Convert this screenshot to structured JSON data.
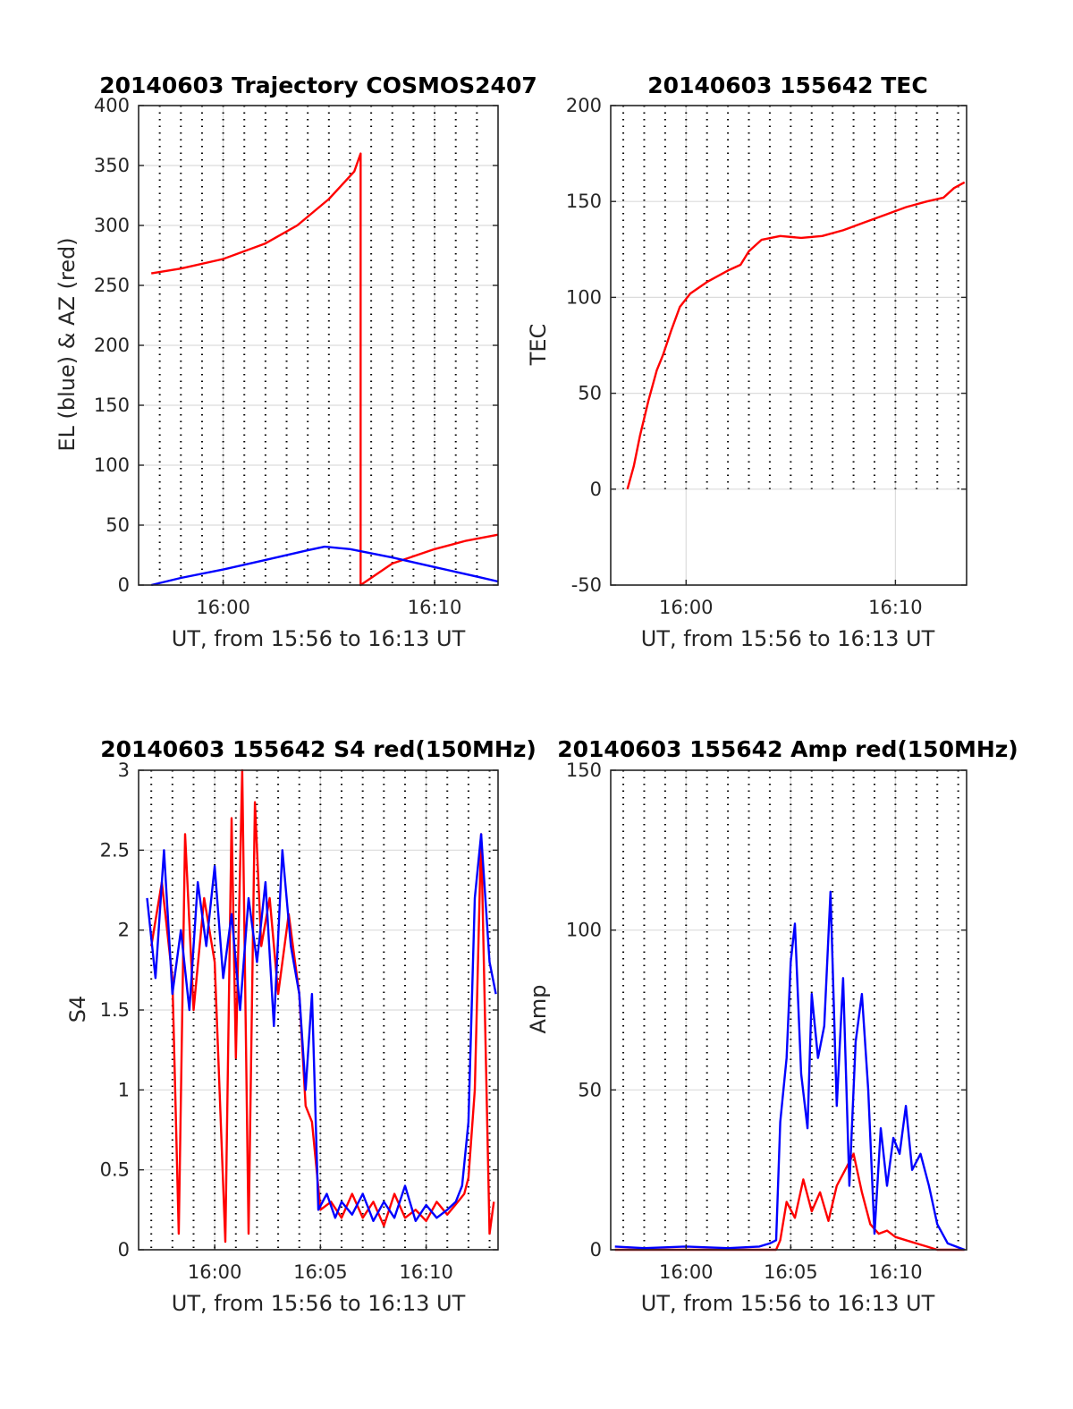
{
  "figure": {
    "date": "20140603",
    "colors": {
      "red": "#ff0000",
      "blue": "#0000ff",
      "grid": "#dcdcdc",
      "axis": "#262626"
    }
  },
  "chart_data": [
    {
      "id": "trajectory",
      "type": "line",
      "title": "20140603 Trajectory COSMOS2407",
      "xlabel": "UT, from 15:56 to 16:13 UT",
      "ylabel": "EL (blue) & AZ (red)",
      "xlim_minutes": [
        956,
        973
      ],
      "ylim": [
        0,
        400
      ],
      "yticks": [
        0,
        50,
        100,
        150,
        200,
        250,
        300,
        350,
        400
      ],
      "yticklabels": [
        "0",
        "50",
        "100",
        "150",
        "200",
        "250",
        "300",
        "350",
        "400"
      ],
      "xticks_minutes": [
        960,
        970
      ],
      "xticklabels": [
        "16:00",
        "16:10"
      ],
      "vlines_minutes": [
        957,
        958,
        959,
        960,
        961,
        962,
        963,
        964,
        965,
        966,
        967,
        968,
        969,
        970,
        971,
        972
      ],
      "grid": true,
      "series": [
        {
          "color": "#ff0000",
          "x": [
            956.6,
            958,
            960,
            962,
            963.5,
            965,
            966.2,
            966.5,
            966.5,
            966.5,
            968,
            970,
            971.5,
            973
          ],
          "y": [
            260,
            264,
            272,
            285,
            300,
            322,
            345,
            360,
            360,
            0,
            18,
            30,
            37,
            42
          ]
        },
        {
          "color": "#0000ff",
          "x": [
            956.6,
            958,
            960,
            962,
            964,
            964.8,
            966,
            968,
            970,
            972,
            973
          ],
          "y": [
            0,
            6,
            13,
            21,
            29,
            32,
            30,
            23,
            15,
            7,
            3
          ]
        }
      ]
    },
    {
      "id": "tec",
      "type": "line",
      "title": "20140603 155642 TEC",
      "xlabel": "UT, from 15:56 to 16:13 UT",
      "ylabel": "TEC",
      "xlim_minutes": [
        956.4,
        973.4
      ],
      "ylim": [
        -50,
        200
      ],
      "yticks": [
        -50,
        0,
        50,
        100,
        150,
        200
      ],
      "yticklabels": [
        "-50",
        "0",
        "50",
        "100",
        "150",
        "200"
      ],
      "xticks_minutes": [
        960,
        970
      ],
      "xticklabels": [
        "16:00",
        "16:10"
      ],
      "vlines_minutes": [
        957,
        958,
        959,
        960,
        961,
        962,
        963,
        964,
        965,
        966,
        967,
        968,
        969,
        970,
        971,
        972,
        973
      ],
      "vlines_ymin": 0,
      "grid": true,
      "series": [
        {
          "color": "#ff0000",
          "x": [
            957.2,
            957.5,
            957.8,
            958.2,
            958.6,
            958.9,
            959.3,
            959.7,
            960.2,
            961,
            962,
            962.6,
            963,
            963.6,
            964.5,
            965.5,
            966.5,
            967.5,
            968.5,
            969.5,
            970.5,
            971.5,
            972.3,
            972.8,
            973.3
          ],
          "y": [
            0,
            12,
            28,
            46,
            62,
            70,
            83,
            95,
            102,
            108,
            114,
            117,
            124,
            130,
            132,
            131,
            132,
            135,
            139,
            143,
            147,
            150,
            152,
            157,
            160
          ]
        }
      ]
    },
    {
      "id": "s4",
      "type": "line",
      "title": "20140603 155642 S4 red(150MHz)",
      "xlabel": "UT, from 15:56 to 16:13 UT",
      "ylabel": "S4",
      "xlim_minutes": [
        956.4,
        973.4
      ],
      "ylim": [
        0,
        3
      ],
      "yticks": [
        0,
        0.5,
        1,
        1.5,
        2,
        2.5,
        3
      ],
      "yticklabels": [
        "0",
        "0.5",
        "1",
        "1.5",
        "2",
        "2.5",
        "3"
      ],
      "xticks_minutes": [
        960,
        965,
        970
      ],
      "xticklabels": [
        "16:00",
        "16:05",
        "16:10"
      ],
      "vlines_minutes": [
        957,
        958,
        959,
        960,
        961,
        962,
        963,
        964,
        965,
        966,
        967,
        968,
        969,
        970,
        971,
        972,
        973
      ],
      "grid": true,
      "series": [
        {
          "color": "#ff0000",
          "x": [
            957,
            957.5,
            958,
            958.3,
            958.6,
            959,
            959.5,
            960,
            960.5,
            960.8,
            961,
            961.3,
            961.6,
            961.9,
            962.2,
            962.6,
            963,
            963.5,
            964,
            964.3,
            964.6,
            965,
            965.5,
            966,
            966.5,
            967,
            967.5,
            968,
            968.5,
            969,
            969.5,
            970,
            970.5,
            971,
            971.5,
            971.8,
            972,
            972.3,
            972.6,
            973,
            973.2
          ],
          "y": [
            1.9,
            2.3,
            1.7,
            0.1,
            2.6,
            1.5,
            2.2,
            1.8,
            0.05,
            2.7,
            1.2,
            3.0,
            0.1,
            2.8,
            1.9,
            2.2,
            1.6,
            2.1,
            1.6,
            0.9,
            0.8,
            0.25,
            0.3,
            0.2,
            0.35,
            0.2,
            0.3,
            0.15,
            0.35,
            0.2,
            0.25,
            0.18,
            0.3,
            0.22,
            0.3,
            0.35,
            0.45,
            1.0,
            2.6,
            0.1,
            0.3
          ]
        },
        {
          "color": "#0000ff",
          "x": [
            956.8,
            957.2,
            957.6,
            958,
            958.4,
            958.8,
            959.2,
            959.6,
            960,
            960.4,
            960.8,
            961.2,
            961.6,
            962,
            962.4,
            962.8,
            963.2,
            963.6,
            964,
            964.3,
            964.6,
            964.9,
            965.3,
            965.7,
            966,
            966.5,
            967,
            967.5,
            968,
            968.5,
            969,
            969.5,
            970,
            970.5,
            971,
            971.4,
            971.7,
            972,
            972.3,
            972.6,
            973,
            973.3
          ],
          "y": [
            2.2,
            1.7,
            2.5,
            1.6,
            2.0,
            1.5,
            2.3,
            1.9,
            2.4,
            1.7,
            2.1,
            1.5,
            2.2,
            1.8,
            2.3,
            1.4,
            2.5,
            1.9,
            1.6,
            1.0,
            1.6,
            0.25,
            0.35,
            0.2,
            0.3,
            0.22,
            0.35,
            0.18,
            0.3,
            0.2,
            0.4,
            0.18,
            0.28,
            0.2,
            0.25,
            0.3,
            0.4,
            0.8,
            2.2,
            2.6,
            1.8,
            1.6
          ]
        }
      ]
    },
    {
      "id": "amp",
      "type": "line",
      "title": "20140603 155642 Amp red(150MHz)",
      "xlabel": "UT, from 15:56 to 16:13 UT",
      "ylabel": "Amp",
      "xlim_minutes": [
        956.4,
        973.4
      ],
      "ylim": [
        0,
        150
      ],
      "yticks": [
        0,
        50,
        100,
        150
      ],
      "yticklabels": [
        "0",
        "50",
        "100",
        "150"
      ],
      "xticks_minutes": [
        960,
        965,
        970
      ],
      "xticklabels": [
        "16:00",
        "16:05",
        "16:10"
      ],
      "vlines_minutes": [
        957,
        958,
        959,
        960,
        961,
        962,
        963,
        964,
        965,
        966,
        967,
        968,
        969,
        970,
        971,
        972,
        973
      ],
      "grid": true,
      "series": [
        {
          "color": "#ff0000",
          "x": [
            956.6,
            960,
            963,
            964,
            964.3,
            964.5,
            964.8,
            965.2,
            965.6,
            966,
            966.4,
            966.8,
            967.2,
            967.6,
            968,
            968.4,
            968.8,
            969.2,
            969.6,
            970,
            970.5,
            971,
            971.5,
            972,
            973.3
          ],
          "y": [
            0,
            0,
            0,
            0,
            0,
            3,
            15,
            10,
            22,
            12,
            18,
            9,
            20,
            25,
            30,
            18,
            8,
            5,
            6,
            4,
            3,
            2,
            1,
            0,
            0
          ]
        },
        {
          "color": "#0000ff",
          "x": [
            956.6,
            958,
            960,
            962,
            963.5,
            964,
            964.3,
            964.5,
            964.8,
            965,
            965.2,
            965.5,
            965.8,
            966,
            966.3,
            966.6,
            966.9,
            967.2,
            967.5,
            967.8,
            968.1,
            968.4,
            968.7,
            969,
            969.3,
            969.6,
            969.9,
            970.2,
            970.5,
            970.8,
            971.2,
            971.6,
            972,
            972.5,
            973.3
          ],
          "y": [
            1,
            0.5,
            1,
            0.5,
            1,
            2,
            3,
            40,
            60,
            90,
            102,
            55,
            38,
            80,
            60,
            70,
            112,
            45,
            85,
            20,
            65,
            80,
            50,
            5,
            38,
            20,
            35,
            30,
            45,
            25,
            30,
            20,
            8,
            2,
            0
          ]
        }
      ]
    }
  ]
}
